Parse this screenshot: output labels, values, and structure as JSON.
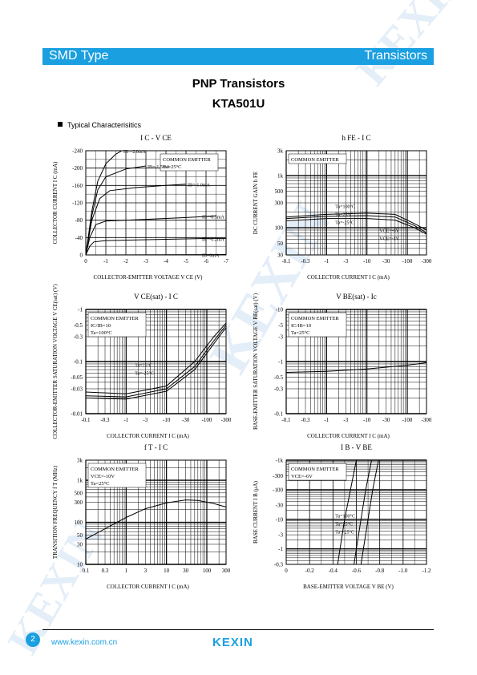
{
  "header": {
    "left": "SMD Type",
    "right": "Transistors"
  },
  "title": "PNP  Transistors",
  "part_number": "KTA501U",
  "section_title": "Typical  Characterisitics",
  "watermark": "KEXIN",
  "footer": {
    "page": "2",
    "website": "www.kexin.com.cn",
    "logo": "KEXIN"
  },
  "colors": {
    "brand": "#1a9fe0"
  },
  "chart_data": [
    {
      "type": "line",
      "title": "I C  - V CE",
      "xlabel": "COLLECTOR-EMITTER VOLTAGE V CE  (V)",
      "ylabel": "COLLECTOR CURRENT I C  (mA)",
      "xticks": [
        "0",
        "-1",
        "-2",
        "-3",
        "-4",
        "-5",
        "-6",
        "-7"
      ],
      "yticks": [
        "0",
        "-40",
        "-80",
        "-120",
        "-160",
        "-200",
        "-240"
      ],
      "xlim": [
        0,
        -7
      ],
      "ylim": [
        0,
        -240
      ],
      "annotations": [
        "COMMON EMITTER",
        "Ta=25°C"
      ],
      "series": [
        {
          "name": "IB=-2.0mA",
          "points": [
            [
              0,
              0
            ],
            [
              -0.3,
              -100
            ],
            [
              -0.6,
              -170
            ],
            [
              -1,
              -210
            ],
            [
              -1.5,
              -232
            ],
            [
              -1.8,
              -240
            ]
          ]
        },
        {
          "name": "IB=-1.5mA",
          "points": [
            [
              0,
              0
            ],
            [
              -0.3,
              -90
            ],
            [
              -0.6,
              -150
            ],
            [
              -1,
              -180
            ],
            [
              -2,
              -198
            ],
            [
              -3,
              -205
            ]
          ]
        },
        {
          "name": "IB=-1.0mA",
          "points": [
            [
              0,
              0
            ],
            [
              -0.3,
              -80
            ],
            [
              -0.7,
              -130
            ],
            [
              -1.2,
              -148
            ],
            [
              -2.5,
              -155
            ],
            [
              -4,
              -160
            ],
            [
              -5,
              -163
            ]
          ]
        },
        {
          "name": "IB=-0.5mA",
          "points": [
            [
              0,
              0
            ],
            [
              -0.2,
              -40
            ],
            [
              -0.5,
              -70
            ],
            [
              -1,
              -78
            ],
            [
              -3,
              -82
            ],
            [
              -5,
              -86
            ],
            [
              -6.5,
              -90
            ]
          ]
        },
        {
          "name": "IB=-0.2mA",
          "points": [
            [
              0,
              0
            ],
            [
              -0.2,
              -20
            ],
            [
              -0.4,
              -30
            ],
            [
              -1,
              -33
            ],
            [
              -4,
              -36
            ],
            [
              -6,
              -38
            ],
            [
              -7,
              -38
            ]
          ]
        },
        {
          "name": "IB=0mA",
          "points": [
            [
              0,
              0
            ],
            [
              -7,
              -1
            ]
          ]
        }
      ]
    },
    {
      "type": "line",
      "title": "h FE  - I C",
      "xlabel": "COLLECTOR CURRENT I C  (mA)",
      "ylabel": "DC CURRENT GAIN h FE",
      "xticks": [
        "-0.1",
        "-0.3",
        "-1",
        "-3",
        "-10",
        "-30",
        "-100",
        "-300"
      ],
      "yticks": [
        "30",
        "50",
        "100",
        "300",
        "500",
        "1k",
        "3k"
      ],
      "xlim": [
        -0.1,
        -300
      ],
      "ylim": [
        30,
        3000
      ],
      "log": true,
      "annotations": [
        "COMMON EMITTER",
        "Ta=100°C",
        "Ta=25°C",
        "Ta=-25°C",
        "VCE=-6V",
        "VCE=-1V"
      ],
      "series": [
        {
          "name": "Ta=100°C",
          "points": [
            [
              -0.1,
              160
            ],
            [
              -1,
              180
            ],
            [
              -10,
              190
            ],
            [
              -50,
              180
            ],
            [
              -150,
              120
            ],
            [
              -300,
              90
            ]
          ]
        },
        {
          "name": "Ta=25°C",
          "points": [
            [
              -0.1,
              150
            ],
            [
              -1,
              165
            ],
            [
              -10,
              170
            ],
            [
              -50,
              160
            ],
            [
              -150,
              110
            ],
            [
              -300,
              80
            ]
          ]
        },
        {
          "name": "Ta=-25°C",
          "points": [
            [
              -0.1,
              135
            ],
            [
              -1,
              150
            ],
            [
              -10,
              150
            ],
            [
              -50,
              140
            ],
            [
              -150,
              100
            ],
            [
              -300,
              75
            ]
          ]
        }
      ]
    },
    {
      "type": "line",
      "title": "V CE(sat)  - I C",
      "xlabel": "COLLECTOR CURRENT I C  (mA)",
      "ylabel": "COLLECTOR-EMITTER SATURATION VOLTAGE V CE(sat)  (V)",
      "xticks": [
        "-0.1",
        "-0.3",
        "-1",
        "-3",
        "-10",
        "-30",
        "-100",
        "-300"
      ],
      "yticks": [
        "-0.01",
        "-0.03",
        "-0.05",
        "-0.1",
        "-0.3",
        "-0.5",
        "-1"
      ],
      "xlim": [
        -0.1,
        -300
      ],
      "ylim": [
        -0.01,
        -1
      ],
      "log": true,
      "annotations": [
        "COMMON EMITTER",
        "IC/IB=10",
        "Ta=100°C",
        "Ta=25°C",
        "Ta=-25°C"
      ],
      "series": [
        {
          "name": "Ta=100°C",
          "points": [
            [
              -0.1,
              -0.026
            ],
            [
              -1,
              -0.024
            ],
            [
              -10,
              -0.034
            ],
            [
              -50,
              -0.1
            ],
            [
              -150,
              -0.3
            ],
            [
              -300,
              -0.55
            ]
          ]
        },
        {
          "name": "Ta=25°C",
          "points": [
            [
              -0.1,
              -0.022
            ],
            [
              -1,
              -0.021
            ],
            [
              -10,
              -0.03
            ],
            [
              -50,
              -0.08
            ],
            [
              -150,
              -0.25
            ],
            [
              -300,
              -0.5
            ]
          ]
        },
        {
          "name": "Ta=-25°C",
          "points": [
            [
              -0.1,
              -0.02
            ],
            [
              -1,
              -0.019
            ],
            [
              -10,
              -0.027
            ],
            [
              -50,
              -0.07
            ],
            [
              -150,
              -0.22
            ],
            [
              -300,
              -0.45
            ]
          ]
        }
      ]
    },
    {
      "type": "line",
      "title": "V BE(sat)  - Ic",
      "xlabel": "COLLECTOR CURRENT I C  (mA)",
      "ylabel": "BASE-EMITTER SATURATION VOLTAGE V BE(sat)  (V)",
      "xticks": [
        "-0.1",
        "-0.3",
        "-1",
        "-3",
        "-10",
        "-30",
        "-100",
        "-300"
      ],
      "yticks": [
        "-0.1",
        "-0.3",
        "-0.5",
        "-1",
        "-3",
        "-5",
        "-10"
      ],
      "xlim": [
        -0.1,
        -300
      ],
      "ylim": [
        -0.1,
        -10
      ],
      "log": true,
      "annotations": [
        "COMMON EMITTER",
        "IC/IB=10",
        "Ta=25°C"
      ],
      "series": [
        {
          "name": "Ta=25°C",
          "points": [
            [
              -0.1,
              -0.62
            ],
            [
              -1,
              -0.65
            ],
            [
              -10,
              -0.72
            ],
            [
              -100,
              -0.85
            ],
            [
              -300,
              -0.95
            ]
          ]
        }
      ]
    },
    {
      "type": "line",
      "title": "f T  - I C",
      "xlabel": "COLLECTOR CURRENT I C  (mA)",
      "ylabel": "TRANSITION FREQUENCY f T  (MHz)",
      "xticks": [
        "0.1",
        "0.3",
        "1",
        "3",
        "10",
        "30",
        "100",
        "300"
      ],
      "yticks": [
        "10",
        "30",
        "50",
        "100",
        "300",
        "500",
        "1k",
        "3k"
      ],
      "xlim": [
        0.1,
        300
      ],
      "ylim": [
        10,
        3000
      ],
      "log": true,
      "annotations": [
        "COMMON EMITTER",
        "VCE=-10V",
        "Ta=25°C"
      ],
      "series": [
        {
          "name": "",
          "points": [
            [
              0.1,
              40
            ],
            [
              0.3,
              70
            ],
            [
              1,
              130
            ],
            [
              3,
              210
            ],
            [
              10,
              290
            ],
            [
              30,
              340
            ],
            [
              60,
              330
            ],
            [
              150,
              280
            ],
            [
              300,
              230
            ]
          ]
        }
      ]
    },
    {
      "type": "line",
      "title": "I B  - V BE",
      "xlabel": "BASE-EMITTER VOLTAGE V BE  (V)",
      "ylabel": "BASE CURRENT I B  (μA)",
      "xticks": [
        "0",
        "-0.2",
        "-0.4",
        "-0.6",
        "-0.8",
        "-1.0",
        "-1.2"
      ],
      "yticks": [
        "-0.3",
        "-1",
        "-3",
        "-10",
        "-30",
        "-100",
        "-300",
        "-1k"
      ],
      "xlim": [
        0,
        -1.2
      ],
      "ylim": [
        -0.3,
        -1000
      ],
      "log": true,
      "annotations": [
        "COMMON EMITTER",
        "VCE=-6V",
        "Ta=100°C",
        "Ta=25°C",
        "Ta=-25°C"
      ],
      "series": [
        {
          "name": "Ta=100°C",
          "points": [
            [
              -0.44,
              -0.3
            ],
            [
              -0.46,
              -1
            ],
            [
              -0.5,
              -10
            ],
            [
              -0.55,
              -100
            ],
            [
              -0.6,
              -1000
            ]
          ]
        },
        {
          "name": "Ta=25°C",
          "points": [
            [
              -0.58,
              -0.3
            ],
            [
              -0.6,
              -1
            ],
            [
              -0.64,
              -10
            ],
            [
              -0.68,
              -100
            ],
            [
              -0.73,
              -1000
            ]
          ]
        },
        {
          "name": "Ta=-25°C",
          "points": [
            [
              -0.64,
              -0.3
            ],
            [
              -0.66,
              -1
            ],
            [
              -0.7,
              -10
            ],
            [
              -0.74,
              -100
            ],
            [
              -0.79,
              -1000
            ]
          ]
        }
      ]
    }
  ]
}
